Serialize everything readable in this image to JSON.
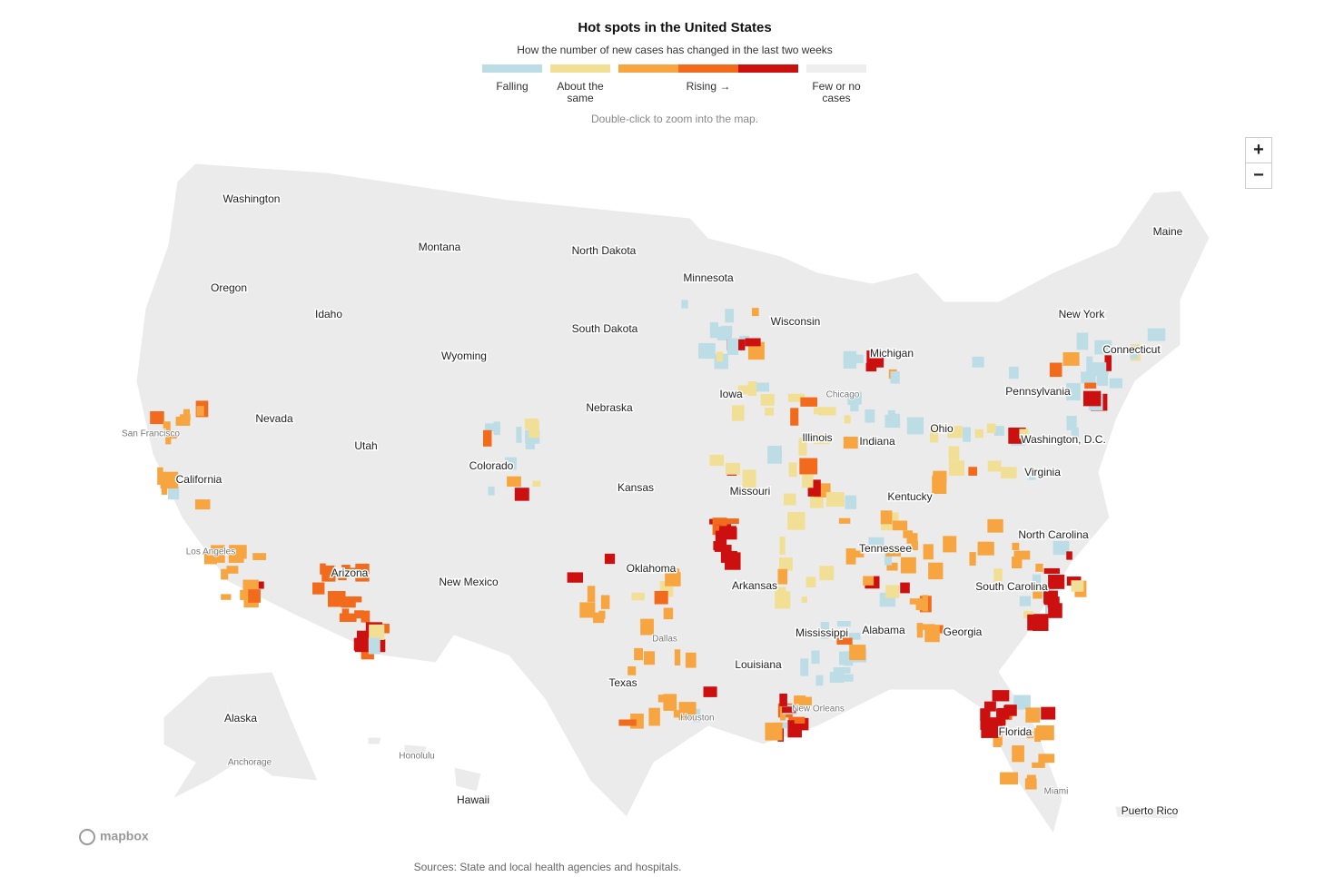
{
  "header": {
    "title": "Hot spots in the United States",
    "subtitle": "How the number of new cases has changed in the last two weeks"
  },
  "legend": {
    "items": [
      {
        "label": "Falling",
        "colors": [
          "#bcdde6"
        ]
      },
      {
        "label": "About the same",
        "colors": [
          "#f2df96"
        ]
      },
      {
        "label": "Rising →",
        "colors": [
          "#f7a540",
          "#f26b1d",
          "#cc1010"
        ]
      },
      {
        "label": "Few or no cases",
        "colors": [
          "#eeeeee"
        ]
      }
    ]
  },
  "hint": "Double-click to zoom into the map.",
  "zoom": {
    "in": "+",
    "out": "−"
  },
  "states": [
    "Washington",
    "Montana",
    "North Dakota",
    "Minnesota",
    "Oregon",
    "Idaho",
    "Wisconsin",
    "South Dakota",
    "Wyoming",
    "Michigan",
    "New York",
    "Maine",
    "Connecticut",
    "Pennsylvania",
    "Iowa",
    "Nebraska",
    "Nevada",
    "Illinois",
    "Indiana",
    "Ohio",
    "Utah",
    "Colorado",
    "Washington, D.C.",
    "Virginia",
    "Kansas",
    "Missouri",
    "Kentucky",
    "California",
    "Tennessee",
    "North Carolina",
    "Oklahoma",
    "Arizona",
    "New Mexico",
    "Arkansas",
    "South Carolina",
    "Mississippi",
    "Alabama",
    "Georgia",
    "Louisiana",
    "Texas",
    "Florida",
    "Alaska",
    "Hawaii",
    "Puerto Rico"
  ],
  "cities": [
    "San Francisco",
    "Los Angeles",
    "Chicago",
    "Dallas",
    "Houston",
    "New Orleans",
    "Anchorage",
    "Honolulu",
    "Miami"
  ],
  "attribution": "mapbox",
  "source": "Sources: State and local health agencies and hospitals."
}
